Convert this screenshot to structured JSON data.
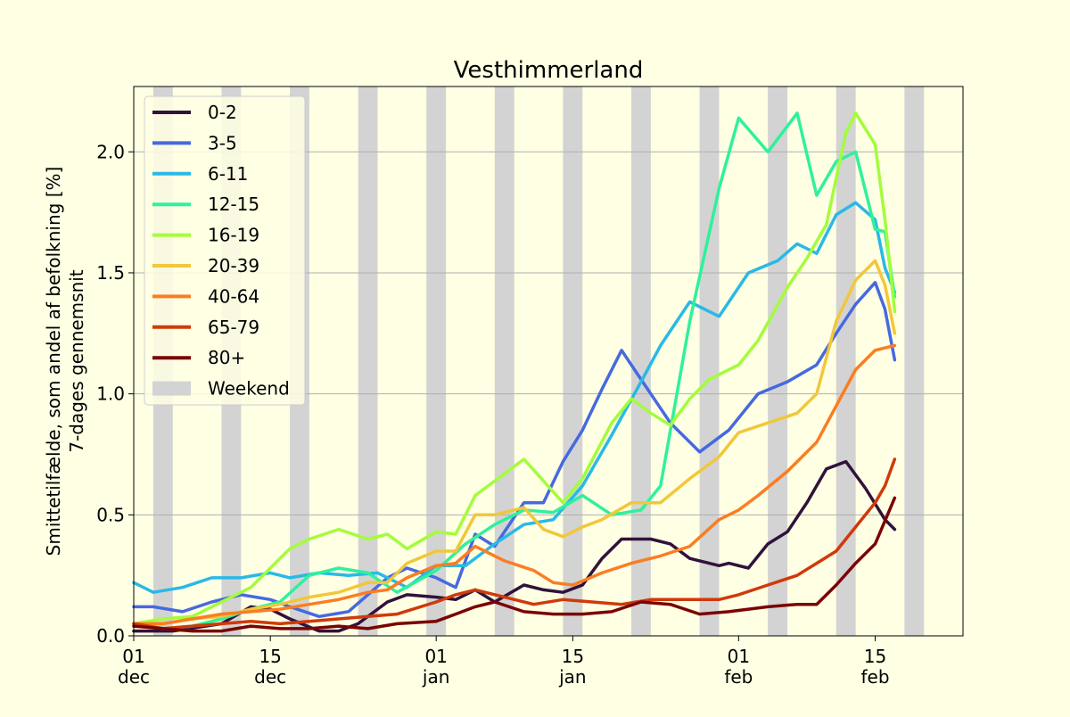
{
  "chart_data": {
    "type": "line",
    "title": "Vesthimmerland",
    "ylabel": "Smittetilfælde, som andel af befolkning [%]",
    "ylabel2": "7-dages gennemsnit",
    "ylim": [
      0,
      2.27
    ],
    "xlim": [
      "2021-12-01",
      "2022-02-24"
    ],
    "grid_y": true,
    "legend_position": "upper-left",
    "x_ticks": [
      {
        "date": "2021-12-01",
        "day": "01",
        "month": "dec"
      },
      {
        "date": "2021-12-15",
        "day": "15",
        "month": "dec"
      },
      {
        "date": "2022-01-01",
        "day": "01",
        "month": "jan"
      },
      {
        "date": "2022-01-15",
        "day": "15",
        "month": "jan"
      },
      {
        "date": "2022-02-01",
        "day": "01",
        "month": "feb"
      },
      {
        "date": "2022-02-15",
        "day": "15",
        "month": "feb"
      }
    ],
    "y_ticks": [
      {
        "value": 0.0,
        "label": "0.0"
      },
      {
        "value": 0.5,
        "label": "0.5"
      },
      {
        "value": 1.0,
        "label": "1.0"
      },
      {
        "value": 1.5,
        "label": "1.5"
      },
      {
        "value": 2.0,
        "label": "2.0"
      }
    ],
    "weekend_label": "Weekend",
    "weekend_color": "#d3d3d3",
    "weekends": [
      [
        "2021-12-03",
        "2021-12-05"
      ],
      [
        "2021-12-10",
        "2021-12-12"
      ],
      [
        "2021-12-17",
        "2021-12-19"
      ],
      [
        "2021-12-24",
        "2021-12-26"
      ],
      [
        "2021-12-31",
        "2022-01-02"
      ],
      [
        "2022-01-07",
        "2022-01-09"
      ],
      [
        "2022-01-14",
        "2022-01-16"
      ],
      [
        "2022-01-21",
        "2022-01-23"
      ],
      [
        "2022-01-28",
        "2022-01-30"
      ],
      [
        "2022-02-04",
        "2022-02-06"
      ],
      [
        "2022-02-11",
        "2022-02-13"
      ],
      [
        "2022-02-18",
        "2022-02-20"
      ]
    ],
    "series": [
      {
        "name": "0-2",
        "color": "#30123b",
        "x": [
          "2021-12-01",
          "2021-12-05",
          "2021-12-10",
          "2021-12-13",
          "2021-12-15",
          "2021-12-17",
          "2021-12-20",
          "2021-12-22",
          "2021-12-24",
          "2021-12-27",
          "2021-12-29",
          "2022-01-01",
          "2022-01-03",
          "2022-01-05",
          "2022-01-07",
          "2022-01-10",
          "2022-01-12",
          "2022-01-14",
          "2022-01-16",
          "2022-01-18",
          "2022-01-20",
          "2022-01-23",
          "2022-01-25",
          "2022-01-27",
          "2022-01-30",
          "2022-01-31",
          "2022-02-02",
          "2022-02-04",
          "2022-02-06",
          "2022-02-08",
          "2022-02-10",
          "2022-02-12",
          "2022-02-14",
          "2022-02-16",
          "2022-02-17"
        ],
        "y": [
          0.02,
          0.02,
          0.05,
          0.12,
          0.11,
          0.07,
          0.02,
          0.02,
          0.05,
          0.14,
          0.17,
          0.16,
          0.15,
          0.19,
          0.14,
          0.21,
          0.19,
          0.18,
          0.21,
          0.32,
          0.4,
          0.4,
          0.38,
          0.32,
          0.29,
          0.3,
          0.28,
          0.38,
          0.43,
          0.55,
          0.69,
          0.72,
          0.61,
          0.48,
          0.44
        ]
      },
      {
        "name": "3-5",
        "color": "#4669e0",
        "x": [
          "2021-12-01",
          "2021-12-03",
          "2021-12-06",
          "2021-12-09",
          "2021-12-12",
          "2021-12-15",
          "2021-12-17",
          "2021-12-20",
          "2021-12-23",
          "2021-12-27",
          "2021-12-29",
          "2022-01-01",
          "2022-01-03",
          "2022-01-05",
          "2022-01-07",
          "2022-01-10",
          "2022-01-12",
          "2022-01-14",
          "2022-01-16",
          "2022-01-18",
          "2022-01-20",
          "2022-01-22",
          "2022-01-25",
          "2022-01-28",
          "2022-01-31",
          "2022-02-03",
          "2022-02-06",
          "2022-02-09",
          "2022-02-11",
          "2022-02-13",
          "2022-02-15",
          "2022-02-16",
          "2022-02-17"
        ],
        "y": [
          0.12,
          0.12,
          0.1,
          0.14,
          0.17,
          0.15,
          0.12,
          0.08,
          0.1,
          0.24,
          0.28,
          0.24,
          0.2,
          0.42,
          0.37,
          0.55,
          0.55,
          0.72,
          0.85,
          1.02,
          1.18,
          1.06,
          0.88,
          0.76,
          0.85,
          1.0,
          1.05,
          1.12,
          1.25,
          1.37,
          1.46,
          1.35,
          1.14
        ]
      },
      {
        "name": "6-11",
        "color": "#29b9e6",
        "x": [
          "2021-12-01",
          "2021-12-03",
          "2021-12-06",
          "2021-12-09",
          "2021-12-12",
          "2021-12-15",
          "2021-12-17",
          "2021-12-20",
          "2021-12-23",
          "2021-12-26",
          "2021-12-29",
          "2022-01-01",
          "2022-01-04",
          "2022-01-07",
          "2022-01-10",
          "2022-01-13",
          "2022-01-16",
          "2022-01-19",
          "2022-01-22",
          "2022-01-24",
          "2022-01-27",
          "2022-01-30",
          "2022-02-02",
          "2022-02-05",
          "2022-02-07",
          "2022-02-09",
          "2022-02-11",
          "2022-02-13",
          "2022-02-15",
          "2022-02-16",
          "2022-02-17"
        ],
        "y": [
          0.22,
          0.18,
          0.2,
          0.24,
          0.24,
          0.26,
          0.24,
          0.26,
          0.25,
          0.26,
          0.2,
          0.29,
          0.29,
          0.38,
          0.46,
          0.48,
          0.62,
          0.83,
          1.05,
          1.2,
          1.38,
          1.32,
          1.5,
          1.55,
          1.62,
          1.58,
          1.74,
          1.79,
          1.72,
          1.52,
          1.42
        ]
      },
      {
        "name": "12-15",
        "color": "#2ff19b",
        "x": [
          "2021-12-01",
          "2021-12-04",
          "2021-12-07",
          "2021-12-10",
          "2021-12-13",
          "2021-12-16",
          "2021-12-19",
          "2021-12-22",
          "2021-12-25",
          "2021-12-28",
          "2022-01-01",
          "2022-01-04",
          "2022-01-07",
          "2022-01-10",
          "2022-01-13",
          "2022-01-16",
          "2022-01-19",
          "2022-01-22",
          "2022-01-24",
          "2022-01-27",
          "2022-01-30",
          "2022-02-01",
          "2022-02-04",
          "2022-02-07",
          "2022-02-09",
          "2022-02-11",
          "2022-02-13",
          "2022-02-15",
          "2022-02-16",
          "2022-02-17"
        ],
        "y": [
          0.05,
          0.03,
          0.04,
          0.07,
          0.11,
          0.14,
          0.25,
          0.28,
          0.26,
          0.18,
          0.27,
          0.38,
          0.46,
          0.52,
          0.51,
          0.58,
          0.5,
          0.52,
          0.62,
          1.3,
          1.85,
          2.14,
          2.0,
          2.16,
          1.82,
          1.96,
          2.0,
          1.68,
          1.67,
          1.4
        ]
      },
      {
        "name": "16-19",
        "color": "#a4fc3c",
        "x": [
          "2021-12-01",
          "2021-12-04",
          "2021-12-07",
          "2021-12-10",
          "2021-12-13",
          "2021-12-15",
          "2021-12-17",
          "2021-12-19",
          "2021-12-22",
          "2021-12-25",
          "2021-12-27",
          "2021-12-29",
          "2022-01-01",
          "2022-01-03",
          "2022-01-05",
          "2022-01-07",
          "2022-01-10",
          "2022-01-12",
          "2022-01-14",
          "2022-01-16",
          "2022-01-19",
          "2022-01-21",
          "2022-01-23",
          "2022-01-25",
          "2022-01-27",
          "2022-01-29",
          "2022-02-01",
          "2022-02-03",
          "2022-02-06",
          "2022-02-08",
          "2022-02-10",
          "2022-02-12",
          "2022-02-13",
          "2022-02-15",
          "2022-02-16",
          "2022-02-17"
        ],
        "y": [
          0.05,
          0.07,
          0.08,
          0.14,
          0.2,
          0.28,
          0.36,
          0.4,
          0.44,
          0.4,
          0.42,
          0.36,
          0.43,
          0.42,
          0.58,
          0.64,
          0.73,
          0.64,
          0.55,
          0.65,
          0.88,
          0.98,
          0.92,
          0.87,
          0.98,
          1.06,
          1.12,
          1.22,
          1.44,
          1.56,
          1.7,
          2.08,
          2.16,
          2.03,
          1.72,
          1.34
        ]
      },
      {
        "name": "20-39",
        "color": "#f1c73b",
        "x": [
          "2021-12-01",
          "2021-12-04",
          "2021-12-07",
          "2021-12-10",
          "2021-12-13",
          "2021-12-16",
          "2021-12-19",
          "2021-12-22",
          "2021-12-25",
          "2021-12-27",
          "2021-12-29",
          "2022-01-01",
          "2022-01-03",
          "2022-01-05",
          "2022-01-07",
          "2022-01-10",
          "2022-01-12",
          "2022-01-14",
          "2022-01-16",
          "2022-01-18",
          "2022-01-21",
          "2022-01-24",
          "2022-01-27",
          "2022-01-30",
          "2022-02-01",
          "2022-02-04",
          "2022-02-07",
          "2022-02-09",
          "2022-02-11",
          "2022-02-13",
          "2022-02-15",
          "2022-02-16",
          "2022-02-17"
        ],
        "y": [
          0.05,
          0.05,
          0.07,
          0.08,
          0.11,
          0.13,
          0.16,
          0.18,
          0.22,
          0.22,
          0.3,
          0.35,
          0.35,
          0.5,
          0.5,
          0.53,
          0.44,
          0.41,
          0.45,
          0.48,
          0.55,
          0.55,
          0.65,
          0.74,
          0.84,
          0.88,
          0.92,
          1.0,
          1.3,
          1.47,
          1.55,
          1.45,
          1.25
        ]
      },
      {
        "name": "40-64",
        "color": "#fb7d22",
        "x": [
          "2021-12-01",
          "2021-12-04",
          "2021-12-07",
          "2021-12-10",
          "2021-12-13",
          "2021-12-16",
          "2021-12-19",
          "2021-12-22",
          "2021-12-25",
          "2021-12-27",
          "2021-12-29",
          "2022-01-01",
          "2022-01-03",
          "2022-01-05",
          "2022-01-08",
          "2022-01-11",
          "2022-01-13",
          "2022-01-15",
          "2022-01-18",
          "2022-01-21",
          "2022-01-24",
          "2022-01-27",
          "2022-01-30",
          "2022-02-01",
          "2022-02-03",
          "2022-02-06",
          "2022-02-09",
          "2022-02-11",
          "2022-02-13",
          "2022-02-15",
          "2022-02-17"
        ],
        "y": [
          0.05,
          0.05,
          0.07,
          0.09,
          0.1,
          0.11,
          0.13,
          0.15,
          0.18,
          0.19,
          0.24,
          0.29,
          0.3,
          0.37,
          0.31,
          0.27,
          0.22,
          0.21,
          0.26,
          0.3,
          0.33,
          0.37,
          0.48,
          0.52,
          0.58,
          0.68,
          0.8,
          0.95,
          1.1,
          1.18,
          1.2
        ]
      },
      {
        "name": "65-79",
        "color": "#cf3a0a",
        "x": [
          "2021-12-01",
          "2021-12-04",
          "2021-12-07",
          "2021-12-10",
          "2021-12-13",
          "2021-12-16",
          "2021-12-19",
          "2021-12-22",
          "2021-12-25",
          "2021-12-28",
          "2022-01-01",
          "2022-01-03",
          "2022-01-05",
          "2022-01-08",
          "2022-01-11",
          "2022-01-14",
          "2022-01-17",
          "2022-01-20",
          "2022-01-23",
          "2022-01-27",
          "2022-01-30",
          "2022-02-01",
          "2022-02-04",
          "2022-02-07",
          "2022-02-09",
          "2022-02-11",
          "2022-02-13",
          "2022-02-15",
          "2022-02-16",
          "2022-02-17"
        ],
        "y": [
          0.05,
          0.03,
          0.04,
          0.05,
          0.06,
          0.05,
          0.06,
          0.07,
          0.08,
          0.09,
          0.14,
          0.17,
          0.19,
          0.16,
          0.13,
          0.15,
          0.14,
          0.13,
          0.15,
          0.15,
          0.15,
          0.17,
          0.21,
          0.25,
          0.3,
          0.35,
          0.45,
          0.55,
          0.62,
          0.73
        ]
      },
      {
        "name": "80+",
        "color": "#7a0403",
        "x": [
          "2021-12-01",
          "2021-12-04",
          "2021-12-07",
          "2021-12-10",
          "2021-12-13",
          "2021-12-16",
          "2021-12-19",
          "2021-12-22",
          "2021-12-25",
          "2021-12-28",
          "2022-01-01",
          "2022-01-03",
          "2022-01-05",
          "2022-01-07",
          "2022-01-10",
          "2022-01-13",
          "2022-01-16",
          "2022-01-19",
          "2022-01-22",
          "2022-01-25",
          "2022-01-28",
          "2022-01-31",
          "2022-02-02",
          "2022-02-04",
          "2022-02-07",
          "2022-02-09",
          "2022-02-11",
          "2022-02-13",
          "2022-02-15",
          "2022-02-17"
        ],
        "y": [
          0.04,
          0.03,
          0.02,
          0.02,
          0.04,
          0.03,
          0.03,
          0.04,
          0.03,
          0.05,
          0.06,
          0.09,
          0.12,
          0.14,
          0.1,
          0.09,
          0.09,
          0.1,
          0.14,
          0.13,
          0.09,
          0.1,
          0.11,
          0.12,
          0.13,
          0.13,
          0.21,
          0.3,
          0.38,
          0.57
        ]
      }
    ]
  }
}
